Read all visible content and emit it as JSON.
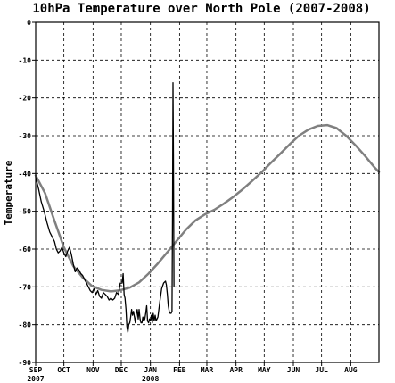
{
  "chart_data": {
    "type": "line",
    "title": "10hPa Temperature over North Pole (2007-2008)",
    "ylabel": "Temperature",
    "xlabel": "",
    "ylim": [
      -90,
      0
    ],
    "yticks": [
      0,
      -10,
      -20,
      -30,
      -40,
      -50,
      -60,
      -70,
      -80,
      -90
    ],
    "xlim": [
      0,
      365
    ],
    "grid": true,
    "legend": "none",
    "xticks": [
      {
        "day": 0,
        "label": "SEP",
        "year": "2007"
      },
      {
        "day": 30,
        "label": "OCT",
        "year": ""
      },
      {
        "day": 61,
        "label": "NOV",
        "year": ""
      },
      {
        "day": 91,
        "label": "DEC",
        "year": ""
      },
      {
        "day": 122,
        "label": "JAN",
        "year": "2008"
      },
      {
        "day": 153,
        "label": "FEB",
        "year": ""
      },
      {
        "day": 182,
        "label": "MAR",
        "year": ""
      },
      {
        "day": 213,
        "label": "APR",
        "year": ""
      },
      {
        "day": 243,
        "label": "MAY",
        "year": ""
      },
      {
        "day": 274,
        "label": "JUN",
        "year": ""
      },
      {
        "day": 304,
        "label": "JUL",
        "year": ""
      },
      {
        "day": 335,
        "label": "AUG",
        "year": ""
      }
    ],
    "series": [
      {
        "color": "#808080",
        "width": 2.5,
        "x": [
          0,
          10,
          20,
          30,
          40,
          50,
          60,
          70,
          80,
          90,
          100,
          110,
          120,
          130,
          140,
          150,
          160,
          170,
          180,
          190,
          200,
          210,
          220,
          230,
          240,
          250,
          260,
          270,
          280,
          290,
          300,
          310,
          320,
          330,
          340,
          350,
          360,
          365
        ],
        "y": [
          -40.5,
          -45.2,
          -52.5,
          -59.5,
          -64.5,
          -67.5,
          -69.8,
          -70.8,
          -71.2,
          -70.9,
          -70.2,
          -68.8,
          -66.5,
          -63.8,
          -60.8,
          -57.8,
          -54.8,
          -52.4,
          -50.8,
          -49.6,
          -48.0,
          -46.2,
          -44.2,
          -42.0,
          -39.7,
          -37.2,
          -34.8,
          -32.3,
          -30.0,
          -28.4,
          -27.4,
          -27.2,
          -28.0,
          -30.0,
          -32.5,
          -35.3,
          -38.3,
          -39.6
        ]
      },
      {
        "color": "#000000",
        "width": 1.3,
        "x": [
          0,
          3,
          6,
          9,
          12,
          15,
          18,
          20,
          22,
          24,
          26,
          28,
          30,
          32,
          34,
          36,
          38,
          40,
          42,
          44,
          46,
          48,
          50,
          52,
          54,
          56,
          58,
          60,
          62,
          64,
          66,
          68,
          70,
          72,
          74,
          76,
          78,
          80,
          82,
          84,
          86,
          88,
          90,
          92,
          93,
          94,
          95,
          96,
          97,
          98,
          99,
          100,
          101,
          102,
          103,
          104,
          105,
          106,
          107,
          108,
          109,
          110,
          111,
          112,
          113,
          114,
          115,
          116,
          117,
          118,
          119,
          120,
          121,
          122,
          123,
          124,
          125,
          126,
          127,
          128,
          130,
          132,
          134,
          136,
          138,
          139,
          140,
          141,
          142,
          143,
          144,
          145,
          145.5,
          146,
          146.5,
          147
        ],
        "y": [
          -41.0,
          -44.0,
          -47.5,
          -50.0,
          -53.0,
          -55.5,
          -57.0,
          -58.0,
          -60.0,
          -61.0,
          -60.5,
          -59.5,
          -61.0,
          -62.0,
          -60.5,
          -59.5,
          -61.5,
          -64.0,
          -66.0,
          -65.0,
          -65.5,
          -66.5,
          -67.0,
          -68.0,
          -69.0,
          -70.0,
          -71.0,
          -71.5,
          -70.5,
          -72.0,
          -71.0,
          -72.5,
          -73.0,
          -71.5,
          -72.0,
          -72.5,
          -73.5,
          -73.0,
          -73.5,
          -73.0,
          -71.5,
          -72.0,
          -69.0,
          -69.0,
          -66.5,
          -72.0,
          -73.0,
          -76.0,
          -80.5,
          -82.0,
          -80.0,
          -79.5,
          -78.0,
          -76.0,
          -77.5,
          -76.5,
          -78.0,
          -79.5,
          -77.0,
          -76.0,
          -78.5,
          -76.0,
          -78.5,
          -79.5,
          -79.5,
          -78.0,
          -79.0,
          -78.5,
          -77.0,
          -75.0,
          -79.0,
          -79.5,
          -78.5,
          -79.0,
          -77.5,
          -79.5,
          -77.0,
          -79.0,
          -77.5,
          -79.0,
          -78.0,
          -74.0,
          -70.5,
          -69.0,
          -68.5,
          -69.5,
          -72.0,
          -75.0,
          -76.5,
          -77.0,
          -77.0,
          -76.5,
          -50.0,
          -16.0,
          -35.0,
          -70.0
        ]
      }
    ]
  }
}
